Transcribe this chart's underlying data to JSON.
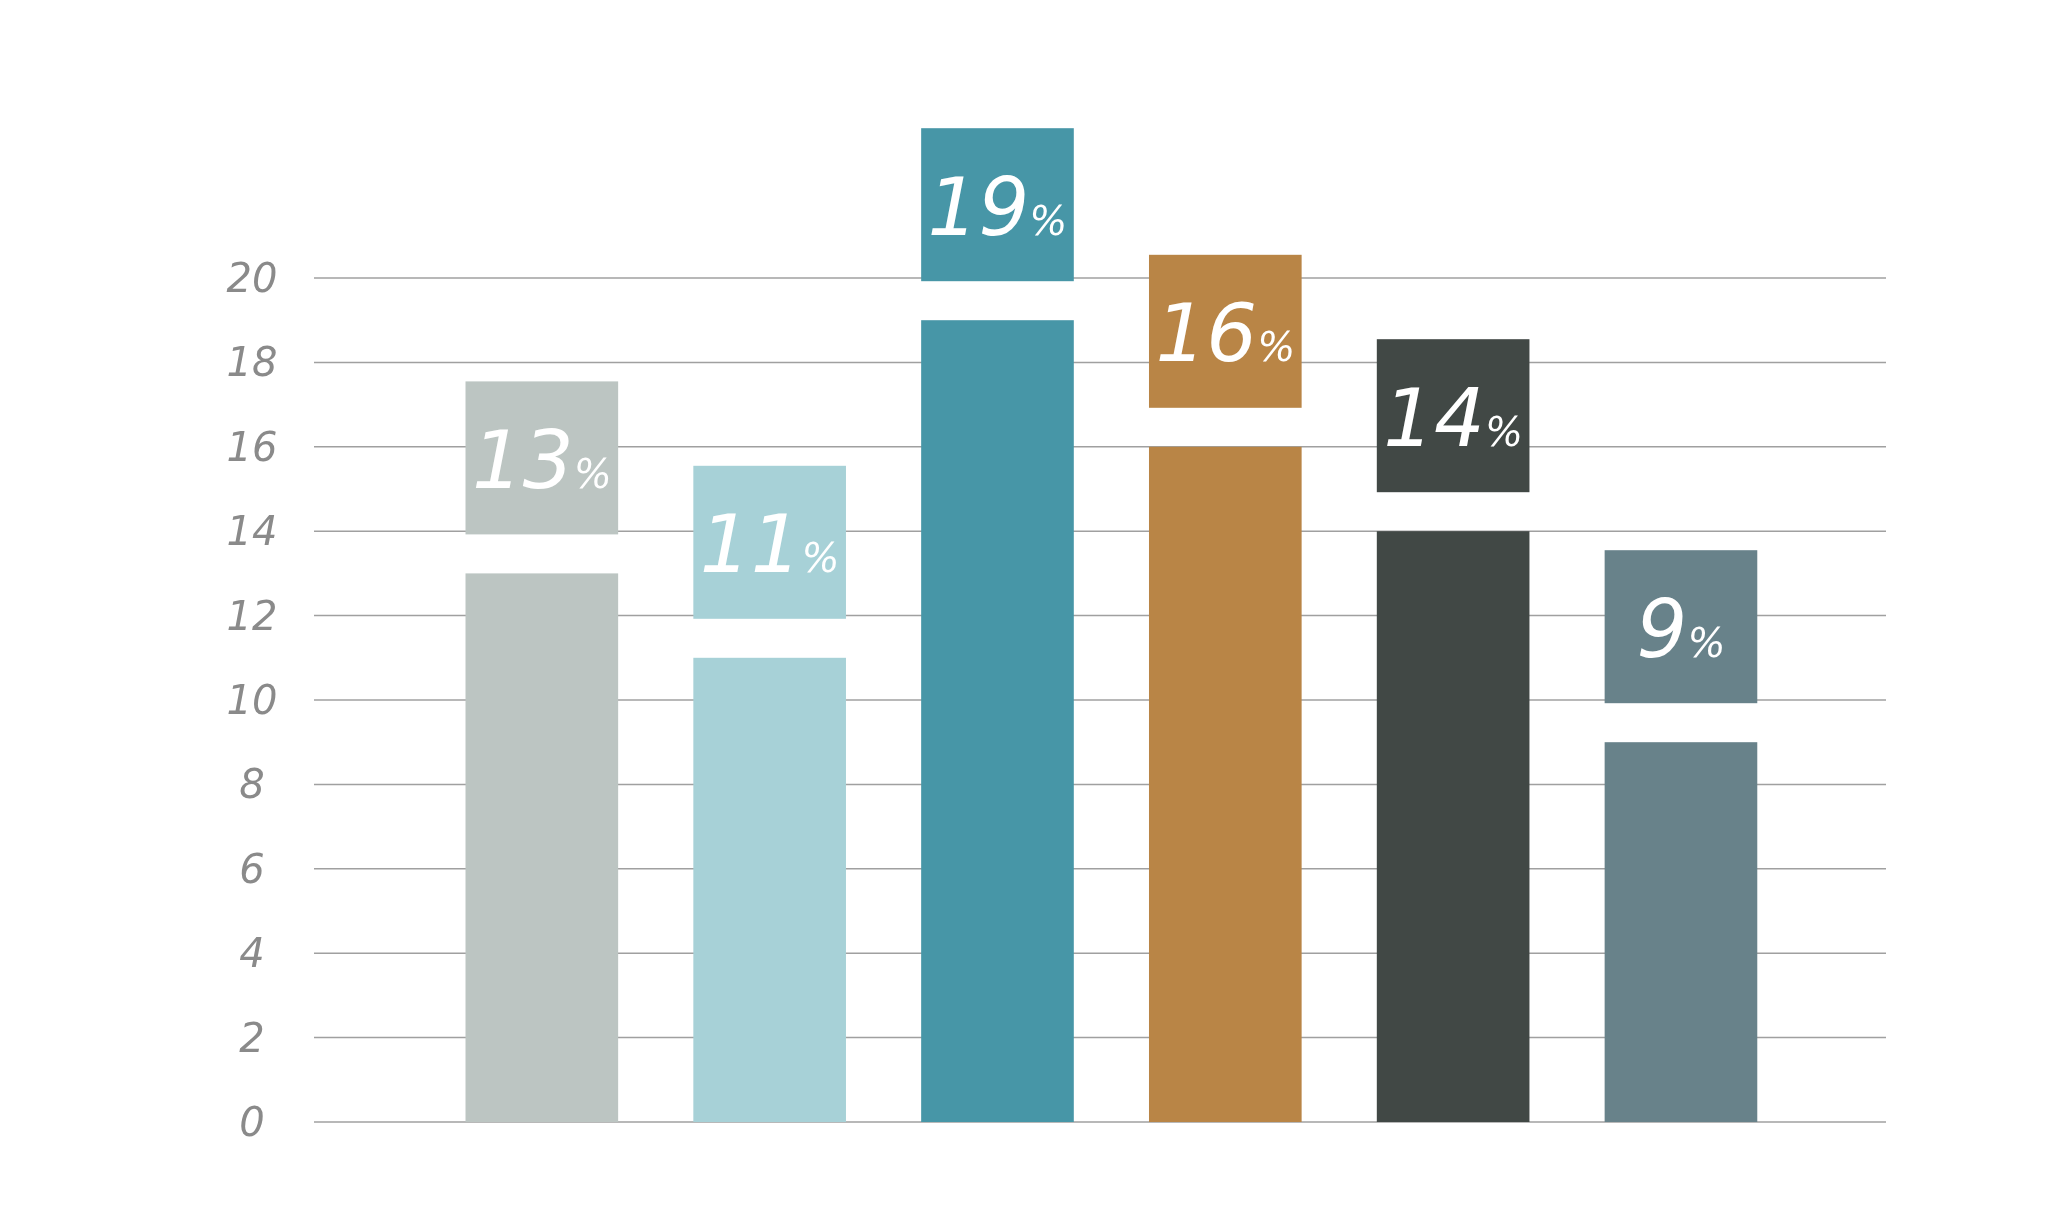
{
  "chart_data": {
    "type": "bar",
    "categories": [
      null,
      null,
      null,
      null,
      null,
      null
    ],
    "values": [
      13,
      11,
      19,
      16,
      14,
      9
    ],
    "colors": [
      "#bcc5c2",
      "#a7d1d7",
      "#4796a7",
      "#b98546",
      "#414845",
      "#68828a"
    ],
    "value_labels": [
      "13%",
      "11%",
      "19%",
      "16%",
      "14%",
      "9%"
    ],
    "ylim": [
      0,
      20
    ],
    "yticks": [
      0,
      2,
      4,
      6,
      8,
      10,
      12,
      14,
      16,
      18,
      20
    ],
    "grid": "y"
  }
}
